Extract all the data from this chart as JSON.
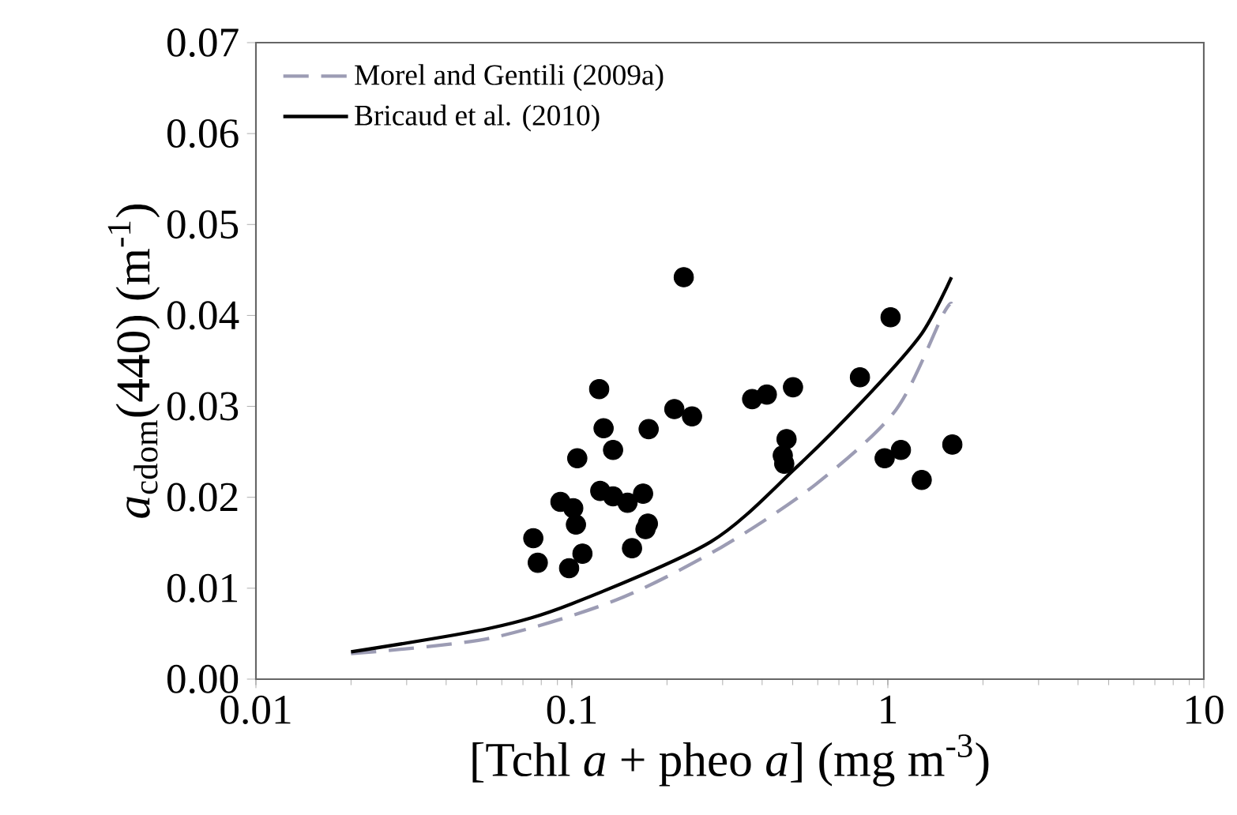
{
  "chart_data": {
    "type": "scatter",
    "xlabel": "[Tchl *a* + pheo *a*] (mg m$^{-3}$)",
    "ylabel": "*a*$_{cdom}$(440) (m$^{-1}$)",
    "log": "x",
    "grid": false,
    "legend": "top left",
    "xlim": [
      0.01,
      10
    ],
    "xticks": [
      0.01,
      0.1,
      1,
      10
    ],
    "ylim": [
      0,
      0.07
    ],
    "yticks": [
      {
        "value": 0,
        "label": "0.00"
      },
      {
        "value": 0.01,
        "label": "0.01"
      },
      {
        "value": 0.02,
        "label": "0.02"
      },
      {
        "value": 0.03,
        "label": "0.03"
      },
      {
        "value": 0.04,
        "label": "0.04"
      },
      {
        "value": 0.05,
        "label": "0.05"
      },
      {
        "value": 0.06,
        "label": "0.06"
      },
      {
        "value": 0.07,
        "label": "0.07"
      }
    ],
    "series": [
      {
        "color": "#000000",
        "marker": "circle",
        "x": [
          0.226,
          0.122,
          0.126,
          0.135,
          0.104,
          0.175,
          0.211,
          0.24,
          0.372,
          0.414,
          0.501,
          0.478,
          0.465,
          0.47,
          0.123,
          0.135,
          0.15,
          0.168,
          0.092,
          0.101,
          0.103,
          0.174,
          0.171,
          0.0755,
          0.078,
          0.098,
          0.108,
          0.155,
          1.02,
          0.816,
          0.977,
          1.1,
          1.28,
          1.6
        ],
        "values": [
          0.0442,
          0.0319,
          0.0276,
          0.0252,
          0.0243,
          0.0275,
          0.0297,
          0.0289,
          0.0308,
          0.0313,
          0.0321,
          0.0264,
          0.0246,
          0.0237,
          0.0207,
          0.0201,
          0.0194,
          0.0204,
          0.0195,
          0.0188,
          0.017,
          0.0171,
          0.0165,
          0.0155,
          0.0128,
          0.0122,
          0.0138,
          0.0144,
          0.0398,
          0.0332,
          0.0243,
          0.0252,
          0.0219,
          0.0258
        ]
      },
      {
        "type": "line",
        "name": "Morel and Gentili (2009a)",
        "color": "#9c9cb4",
        "line_style": "dashed",
        "marker": "none",
        "x": [
          0.02,
          0.055,
          0.138,
          0.297,
          0.59,
          1.06,
          1.49,
          1.59
        ],
        "values": [
          0.0028,
          0.0045,
          0.0087,
          0.0145,
          0.0214,
          0.0296,
          0.04,
          0.0413
        ]
      },
      {
        "type": "line",
        "name": "Bricaud et al. (2010)",
        "color": "#000000",
        "line_style": "solid",
        "marker": "none",
        "x": [
          0.02,
          0.055,
          0.1,
          0.275,
          0.51,
          0.87,
          1.28,
          1.59
        ],
        "values": [
          0.003,
          0.0056,
          0.0083,
          0.0151,
          0.0232,
          0.0313,
          0.038,
          0.0442
        ]
      }
    ]
  }
}
